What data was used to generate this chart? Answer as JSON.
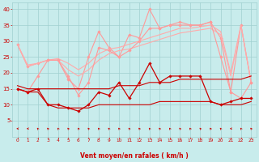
{
  "x_values": [
    0,
    1,
    2,
    3,
    4,
    5,
    6,
    7,
    8,
    9,
    10,
    11,
    12,
    13,
    14,
    15,
    16,
    17,
    18,
    19,
    20,
    21,
    22,
    23
  ],
  "series": [
    {
      "name": "rafales_max",
      "color": "#ff9999",
      "linewidth": 0.8,
      "marker": "D",
      "markersize": 1.8,
      "values": [
        29,
        22,
        23,
        24,
        24,
        18,
        15,
        25,
        33,
        28,
        25,
        32,
        31,
        40,
        34,
        35,
        36,
        35,
        35,
        36,
        31,
        14,
        35,
        17
      ]
    },
    {
      "name": "smooth_upper",
      "color": "#ffaaaa",
      "linewidth": 0.8,
      "marker": null,
      "markersize": 0,
      "values": [
        29,
        22.5,
        23,
        24,
        24.5,
        23,
        21,
        23,
        26,
        27.5,
        28,
        29,
        30,
        31,
        32,
        33,
        34,
        34,
        34.5,
        35,
        33,
        20,
        35,
        17
      ]
    },
    {
      "name": "smooth_lower",
      "color": "#ffaaaa",
      "linewidth": 0.8,
      "marker": null,
      "markersize": 0,
      "values": [
        29,
        22,
        23,
        24,
        24,
        21,
        19,
        21,
        24,
        26,
        27,
        27.5,
        28.5,
        29.5,
        30.5,
        31.5,
        32.5,
        33,
        33.5,
        34,
        32,
        19,
        35,
        17
      ]
    },
    {
      "name": "vent_moyen_rafales",
      "color": "#ff9999",
      "linewidth": 0.8,
      "marker": "D",
      "markersize": 1.8,
      "values": [
        15,
        14,
        19,
        24,
        24,
        19,
        13,
        17,
        28,
        27,
        25,
        27,
        30,
        34,
        34,
        35,
        35,
        35,
        35,
        36,
        25,
        14,
        12,
        17
      ]
    },
    {
      "name": "vent_moy_line",
      "color": "#cc0000",
      "linewidth": 0.9,
      "marker": "D",
      "markersize": 1.8,
      "values": [
        15,
        14,
        15,
        10,
        10,
        9,
        8,
        10,
        14,
        13,
        17,
        12,
        17,
        23,
        17,
        19,
        19,
        19,
        19,
        11,
        10,
        11,
        12,
        12
      ]
    },
    {
      "name": "baseline_upper",
      "color": "#cc0000",
      "linewidth": 0.8,
      "marker": null,
      "markersize": 0,
      "values": [
        16,
        15,
        15,
        15,
        15,
        15,
        15,
        15,
        15,
        15,
        16,
        16,
        16,
        17,
        17,
        17,
        18,
        18,
        18,
        18,
        18,
        18,
        18,
        19
      ]
    },
    {
      "name": "baseline_lower",
      "color": "#cc0000",
      "linewidth": 0.8,
      "marker": null,
      "markersize": 0,
      "values": [
        15,
        14,
        14,
        10,
        9,
        9,
        9,
        9,
        10,
        10,
        10,
        10,
        10,
        10,
        11,
        11,
        11,
        11,
        11,
        11,
        10,
        10,
        10,
        11
      ]
    }
  ],
  "arrow_angles": [
    270,
    270,
    225,
    225,
    225,
    225,
    225,
    225,
    225,
    225,
    225,
    225,
    225,
    225,
    225,
    225,
    225,
    225,
    225,
    225,
    225,
    270,
    225,
    225
  ],
  "ylim": [
    0,
    42
  ],
  "xlim": [
    -0.5,
    23.5
  ],
  "yticks": [
    5,
    10,
    15,
    20,
    25,
    30,
    35,
    40
  ],
  "xticks": [
    0,
    1,
    2,
    3,
    4,
    5,
    6,
    7,
    8,
    9,
    10,
    11,
    12,
    13,
    14,
    15,
    16,
    17,
    18,
    19,
    20,
    21,
    22,
    23
  ],
  "bg_color": "#c8ecec",
  "grid_color": "#a0d0d0",
  "arrow_color": "#cc0000",
  "tick_color": "#cc0000",
  "xlabel": "Vent moyen/en rafales ( km/h )",
  "xlabel_color": "#cc0000",
  "xlabel_fontsize": 5.5,
  "ytick_fontsize": 5.0,
  "xtick_fontsize": 4.2
}
